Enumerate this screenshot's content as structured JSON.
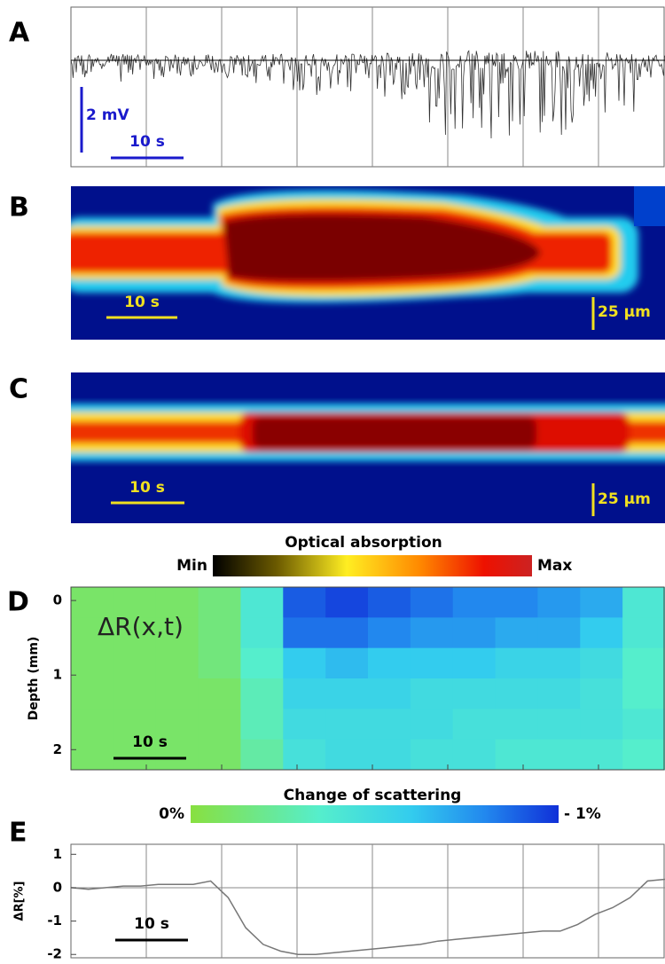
{
  "chart_data": [
    {
      "type": "trace",
      "label": "A",
      "scale_y": "2 mV",
      "scale_x": "10 s"
    },
    {
      "type": "image",
      "label": "B",
      "scale_x": "10 s",
      "scale_y": "25 µm"
    },
    {
      "type": "image",
      "label": "C",
      "scale_x": "10 s",
      "scale_y": "25 µm"
    },
    {
      "type": "colorbar",
      "title": "Optical absorption",
      "min_label": "Min",
      "max_label": "Max"
    },
    {
      "type": "heatmap",
      "label": "D",
      "y_label": "Depth (mm)",
      "annotation": "ΔR(x,t)",
      "scale_x": "10 s",
      "ylim": [
        -0.18,
        2.27
      ],
      "yticks": [
        0,
        1,
        2
      ],
      "z": [
        [
          -0.1,
          -0.1,
          -0.1,
          -0.15,
          -0.4,
          -0.9,
          -0.95,
          -0.9,
          -0.85,
          -0.8,
          -0.8,
          -0.75,
          -0.7,
          -0.4
        ],
        [
          -0.1,
          -0.1,
          -0.1,
          -0.15,
          -0.4,
          -0.85,
          -0.85,
          -0.8,
          -0.75,
          -0.75,
          -0.7,
          -0.7,
          -0.6,
          -0.4
        ],
        [
          -0.1,
          -0.1,
          -0.1,
          -0.15,
          -0.35,
          -0.6,
          -0.65,
          -0.6,
          -0.6,
          -0.6,
          -0.55,
          -0.55,
          -0.5,
          -0.35
        ],
        [
          -0.1,
          -0.1,
          -0.1,
          -0.1,
          -0.3,
          -0.55,
          -0.55,
          -0.55,
          -0.5,
          -0.5,
          -0.5,
          -0.5,
          -0.45,
          -0.35
        ],
        [
          -0.1,
          -0.1,
          -0.1,
          -0.1,
          -0.3,
          -0.5,
          -0.5,
          -0.5,
          -0.5,
          -0.45,
          -0.45,
          -0.45,
          -0.45,
          -0.4
        ],
        [
          -0.1,
          -0.1,
          -0.1,
          -0.1,
          -0.25,
          -0.45,
          -0.5,
          -0.5,
          -0.45,
          -0.45,
          -0.4,
          -0.4,
          -0.4,
          -0.35
        ]
      ]
    },
    {
      "type": "colorbar",
      "title": "Change of scattering",
      "min_label": "0%",
      "max_label": "- 1%"
    },
    {
      "type": "line",
      "label": "E",
      "y_label": "ΔR[%]",
      "scale_x": "10 s",
      "color": "#777777",
      "ylim": [
        -2.1,
        1.3
      ],
      "yticks": [
        1,
        0,
        -1,
        -2
      ],
      "values": [
        0.0,
        -0.05,
        0.0,
        0.05,
        0.05,
        0.1,
        0.1,
        0.1,
        0.2,
        -0.3,
        -1.2,
        -1.7,
        -1.9,
        -2.0,
        -2.0,
        -1.95,
        -1.9,
        -1.85,
        -1.8,
        -1.75,
        -1.7,
        -1.6,
        -1.55,
        -1.5,
        -1.45,
        -1.4,
        -1.35,
        -1.3,
        -1.3,
        -1.1,
        -0.8,
        -0.6,
        -0.3,
        0.2,
        0.25
      ]
    }
  ]
}
